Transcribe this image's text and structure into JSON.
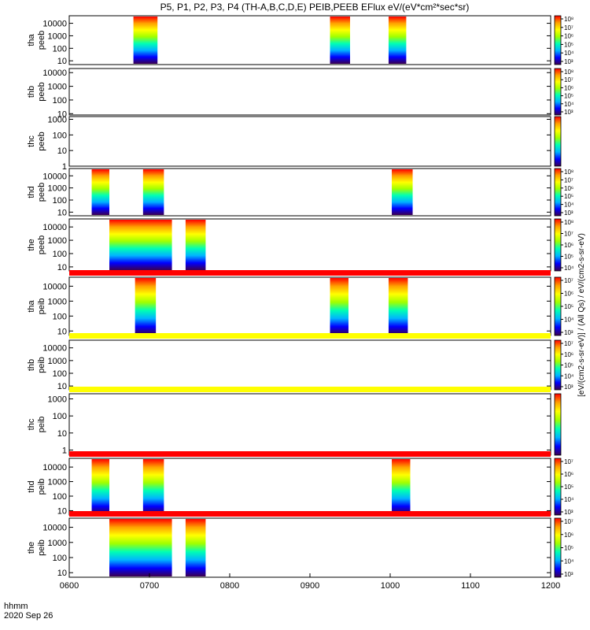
{
  "title": "P5, P1, P2, P3, P4 (TH-A,B,C,D,E) PEIB,PEEB EFlux eV/(eV*cm²*sec*sr)",
  "x_axis": {
    "ticks": [
      "0600",
      "0700",
      "0800",
      "0900",
      "1000",
      "1100",
      "1200"
    ],
    "label_line1": "hhmm",
    "label_line2": "2020 Sep 26"
  },
  "colors": {
    "spectrogram_scale": [
      "#3c0050",
      "#0000ff",
      "#00b4ff",
      "#00ffb4",
      "#a0ff00",
      "#ffff00",
      "#ffa000",
      "#ff0000"
    ],
    "fill_band_red": "#ff0000",
    "fill_band_yellow": "#ffff00",
    "axes": "#000000"
  },
  "colorbar_title": "[eV/(cm2-s-sr-eV)] / (All Qs) / eV/(cm2-s-sr-eV)",
  "chart_data": {
    "type": "heatmap",
    "x_range_hours": [
      6.0,
      12.0
    ],
    "y_scale": "log",
    "panels": [
      {
        "line1": "tha",
        "line2": "peeb",
        "ylim": [
          5,
          40000
        ],
        "yticks": [
          "10",
          "100",
          "1000",
          "10000"
        ],
        "cbar_ticks": [
          "10³",
          "10⁴",
          "10⁵",
          "10⁶",
          "10⁷",
          "10⁸"
        ],
        "cbar_range": [
          3,
          8.5
        ],
        "data_intervals": [
          [
            6.8,
            7.1
          ],
          [
            9.25,
            9.5
          ],
          [
            9.98,
            10.2
          ]
        ]
      },
      {
        "line1": "thb",
        "line2": "peeb",
        "ylim": [
          8,
          20000
        ],
        "yticks": [
          "10",
          "100",
          "1000",
          "10000"
        ],
        "cbar_ticks": [
          "10³",
          "10⁴",
          "10⁵",
          "10⁶",
          "10⁷",
          "10⁸"
        ],
        "cbar_range": [
          3,
          8.5
        ],
        "data_intervals": []
      },
      {
        "line1": "thc",
        "line2": "peeb",
        "ylim": [
          1,
          1500
        ],
        "yticks": [
          "1",
          "10",
          "100",
          "1000"
        ],
        "cbar_ticks": [],
        "cbar_range": [
          3,
          8.5
        ],
        "data_intervals": []
      },
      {
        "line1": "thd",
        "line2": "peeb",
        "ylim": [
          5,
          40000
        ],
        "yticks": [
          "10",
          "100",
          "1000",
          "10000"
        ],
        "cbar_ticks": [
          "10³",
          "10⁴",
          "10⁵",
          "10⁶",
          "10⁷",
          "10⁸"
        ],
        "cbar_range": [
          3,
          8.5
        ],
        "data_intervals": [
          [
            6.28,
            6.5
          ],
          [
            6.92,
            7.18
          ],
          [
            10.02,
            10.28
          ]
        ]
      },
      {
        "line1": "the",
        "line2": "peeb",
        "ylim": [
          5,
          40000
        ],
        "yticks": [
          "10",
          "100",
          "1000",
          "10000"
        ],
        "cbar_ticks": [
          "10⁴",
          "10⁵",
          "10⁶",
          "10⁷",
          "10⁸"
        ],
        "cbar_range": [
          3.5,
          8.5
        ],
        "data_intervals": [
          [
            6.5,
            7.28
          ],
          [
            7.45,
            7.7
          ]
        ]
      },
      {
        "line1": "tha",
        "line2": "peib",
        "ylim": [
          5,
          40000
        ],
        "yticks": [
          "10",
          "100",
          "1000",
          "10000"
        ],
        "cbar_ticks": [
          "10³",
          "10⁴",
          "10⁵",
          "10⁶",
          "10⁷"
        ],
        "cbar_range": [
          3,
          7.5
        ],
        "data_intervals": [
          [
            6.82,
            7.08
          ],
          [
            9.25,
            9.48
          ],
          [
            9.98,
            10.22
          ]
        ],
        "band_above": "red"
      },
      {
        "line1": "thb",
        "line2": "peib",
        "ylim": [
          5,
          40000
        ],
        "yticks": [
          "10",
          "100",
          "1000",
          "10000"
        ],
        "cbar_ticks": [
          "10³",
          "10⁴",
          "10⁵",
          "10⁶",
          "10⁷"
        ],
        "cbar_range": [
          3,
          7.5
        ],
        "data_intervals": [],
        "band_above": "yellow"
      },
      {
        "line1": "thc",
        "line2": "peib",
        "ylim": [
          0.5,
          2000
        ],
        "yticks": [
          "1",
          "10",
          "100",
          "1000"
        ],
        "cbar_ticks": [],
        "cbar_range": [
          3,
          7.5
        ],
        "data_intervals": [],
        "band_above": "yellow"
      },
      {
        "line1": "thd",
        "line2": "peib",
        "ylim": [
          5,
          40000
        ],
        "yticks": [
          "10",
          "100",
          "1000",
          "10000"
        ],
        "cbar_ticks": [
          "10³",
          "10⁴",
          "10⁵",
          "10⁶",
          "10⁷"
        ],
        "cbar_range": [
          3,
          7.5
        ],
        "data_intervals": [
          [
            6.28,
            6.5
          ],
          [
            6.92,
            7.18
          ],
          [
            10.02,
            10.25
          ]
        ],
        "band_above": "red"
      },
      {
        "line1": "the",
        "line2": "peib",
        "ylim": [
          5,
          40000
        ],
        "yticks": [
          "10",
          "100",
          "1000",
          "10000"
        ],
        "cbar_ticks": [
          "10³",
          "10⁴",
          "10⁵",
          "10⁶",
          "10⁷"
        ],
        "cbar_range": [
          3,
          7.5
        ],
        "data_intervals": [
          [
            6.5,
            7.28
          ],
          [
            7.45,
            7.7
          ]
        ],
        "band_above": "red"
      }
    ]
  }
}
